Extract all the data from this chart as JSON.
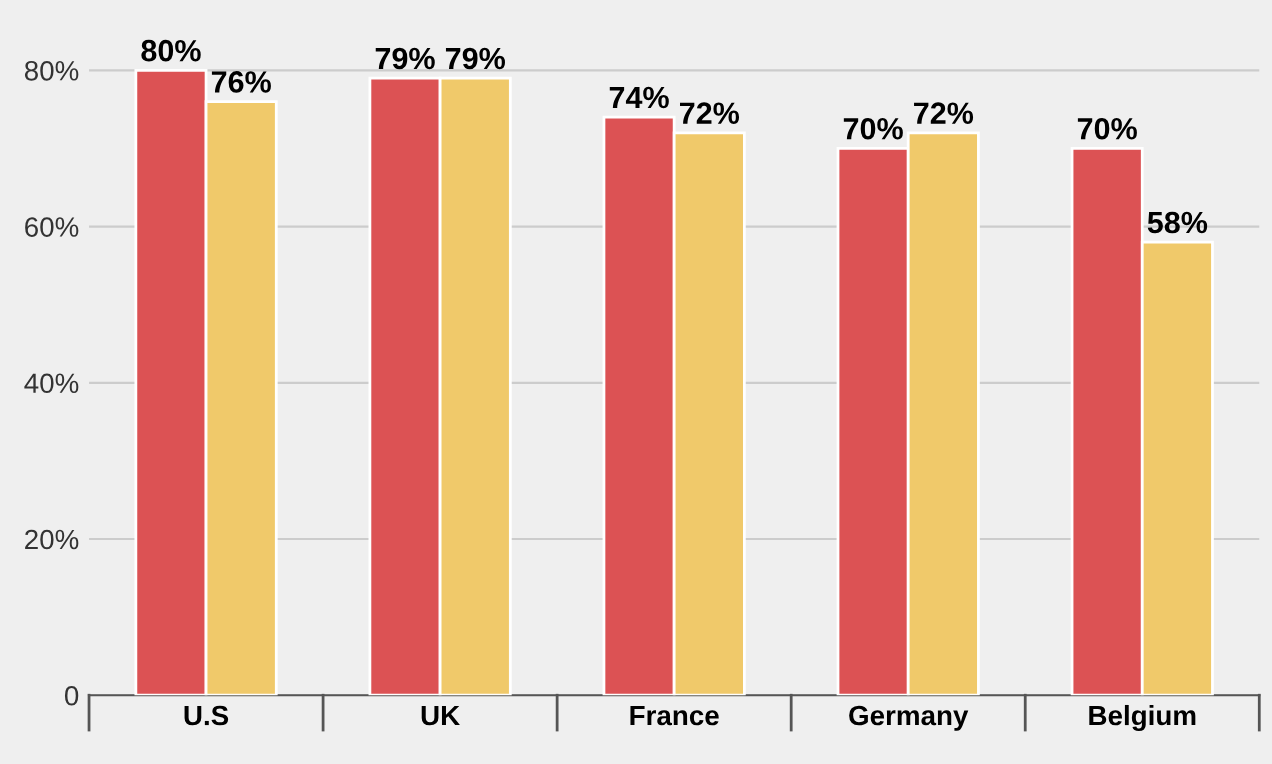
{
  "chart_data": {
    "type": "bar",
    "categories": [
      "U.S",
      "UK",
      "France",
      "Germany",
      "Belgium"
    ],
    "series": [
      {
        "color": "#dc5254",
        "values": [
          80,
          79,
          74,
          70,
          70
        ],
        "value_labels": [
          "80%",
          "79%",
          "74%",
          "70%",
          "70%"
        ]
      },
      {
        "color": "#f0c96a",
        "values": [
          76,
          79,
          72,
          72,
          58
        ],
        "value_labels": [
          "76%",
          "79%",
          "72%",
          "72%",
          "58%"
        ]
      }
    ],
    "ylim": [
      0,
      89
    ],
    "yticks": [
      0,
      {
        "value": 20,
        "label": "20%"
      },
      {
        "value": 40,
        "label": "40%"
      },
      {
        "value": 60,
        "label": "60%"
      },
      {
        "value": 80,
        "label": "80%"
      }
    ],
    "grid": "y",
    "legend": false
  }
}
